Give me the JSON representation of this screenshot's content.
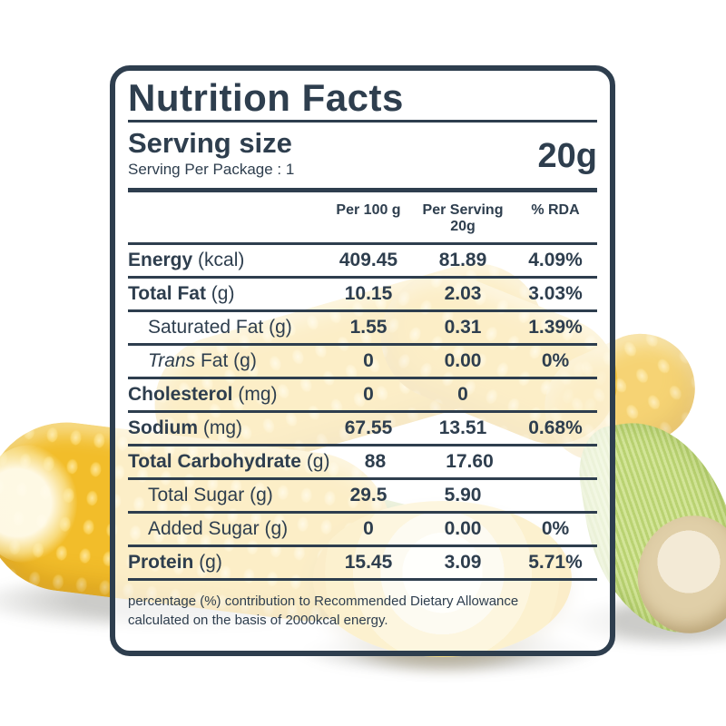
{
  "label": {
    "title": "Nutrition Facts",
    "serving_size_heading": "Serving size",
    "serving_amount": "20g",
    "serving_per_package": "Serving Per Package : 1",
    "footnote": "percentage (%) contribution to Recommended Dietary Allowance calculated on the basis of 2000kcal energy."
  },
  "table": {
    "columns": [
      {
        "line1": "Per 100 g",
        "line2": ""
      },
      {
        "line1": "Per Serving",
        "line2": "20g"
      },
      {
        "line1": "% RDA",
        "line2": ""
      }
    ],
    "rows": [
      {
        "label": "Energy",
        "unit": "(kcal)",
        "style": "bold",
        "per_100g": "409.45",
        "per_serving": "81.89",
        "rda": "4.09%"
      },
      {
        "label": "Total Fat",
        "unit": "(g)",
        "style": "bold",
        "per_100g": "10.15",
        "per_serving": "2.03",
        "rda": "3.03%"
      },
      {
        "label": "Saturated Fat",
        "unit": "(g)",
        "style": "indent",
        "per_100g": "1.55",
        "per_serving": "0.31",
        "rda": "1.39%"
      },
      {
        "label": "Trans Fat",
        "unit": "(g)",
        "style": "indent-italic-lead",
        "per_100g": "0",
        "per_serving": "0.00",
        "rda": "0%"
      },
      {
        "label": "Cholesterol",
        "unit": "(mg)",
        "style": "bold",
        "per_100g": "0",
        "per_serving": "0",
        "rda": ""
      },
      {
        "label": "Sodium",
        "unit": "(mg)",
        "style": "bold",
        "per_100g": "67.55",
        "per_serving": "13.51",
        "rda": "0.68%"
      },
      {
        "label": "Total Carbohydrate",
        "unit": "(g)",
        "style": "bold",
        "per_100g": "88",
        "per_serving": "17.60",
        "rda": ""
      },
      {
        "label": "Total Sugar",
        "unit": "(g)",
        "style": "indent",
        "per_100g": "29.5",
        "per_serving": "5.90",
        "rda": ""
      },
      {
        "label": "Added Sugar",
        "unit": "(g)",
        "style": "indent",
        "per_100g": "0",
        "per_serving": "0.00",
        "rda": "0%"
      },
      {
        "label": "Protein",
        "unit": "(g)",
        "style": "bold",
        "per_100g": "15.45",
        "per_serving": "3.09",
        "rda": "5.71%"
      }
    ]
  },
  "colors": {
    "ink": "#2e3e4e",
    "panel_background": "rgba(255,255,255,0.74)",
    "corn_yellow": "#f2bd2a",
    "corn_highlight": "#fee69a",
    "husk_green": "#c3db85"
  }
}
